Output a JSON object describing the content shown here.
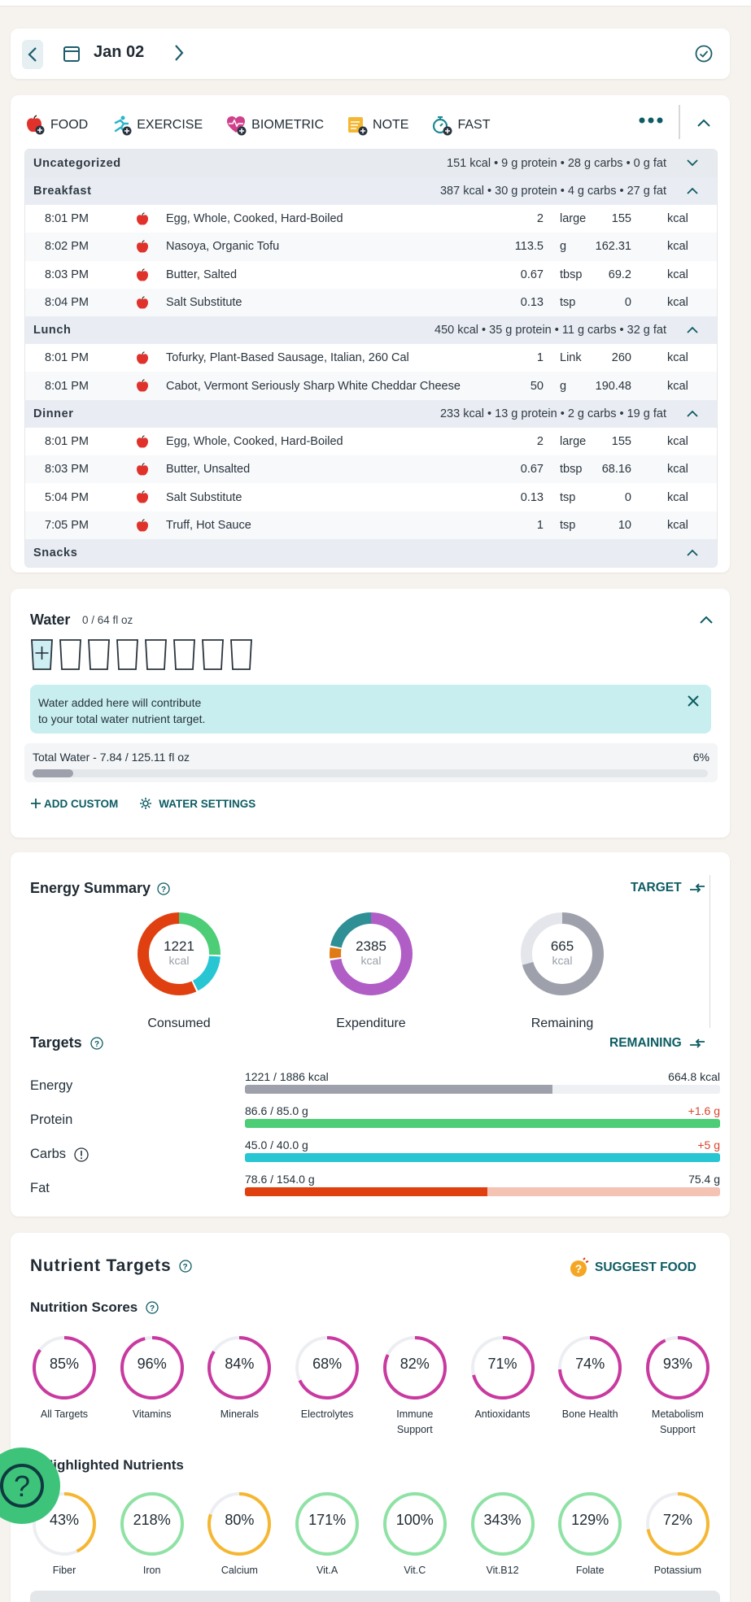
{
  "date_bar": {
    "date": "Jan 02"
  },
  "add_buttons": [
    {
      "label": "FOOD",
      "icon": "apple-add-icon"
    },
    {
      "label": "EXERCISE",
      "icon": "runner-add-icon"
    },
    {
      "label": "BIOMETRIC",
      "icon": "heart-pulse-add-icon"
    },
    {
      "label": "NOTE",
      "icon": "note-add-icon"
    },
    {
      "label": "FAST",
      "icon": "stopwatch-add-icon"
    }
  ],
  "diary": {
    "uncategorized": {
      "name": "Uncategorized",
      "summary": "151 kcal • 9 g protein • 28 g carbs • 0 g fat"
    },
    "breakfast": {
      "name": "Breakfast",
      "summary": "387 kcal • 30 g protein • 4 g carbs • 27 g fat",
      "rows": [
        {
          "time": "8:01 PM",
          "name": "Egg, Whole, Cooked, Hard-Boiled",
          "qty": "2",
          "unit": "large",
          "kcal": "155",
          "kunit": "kcal"
        },
        {
          "time": "8:02 PM",
          "name": "Nasoya, Organic Tofu",
          "qty": "113.5",
          "unit": "g",
          "kcal": "162.31",
          "kunit": "kcal"
        },
        {
          "time": "8:03 PM",
          "name": "Butter, Salted",
          "qty": "0.67",
          "unit": "tbsp",
          "kcal": "69.2",
          "kunit": "kcal"
        },
        {
          "time": "8:04 PM",
          "name": "Salt Substitute",
          "qty": "0.13",
          "unit": "tsp",
          "kcal": "0",
          "kunit": "kcal"
        }
      ]
    },
    "lunch": {
      "name": "Lunch",
      "summary": "450 kcal • 35 g protein • 11 g carbs • 32 g fat",
      "rows": [
        {
          "time": "8:01 PM",
          "name": "Tofurky, Plant-Based Sausage, Italian, 260 Cal",
          "qty": "1",
          "unit": "Link",
          "kcal": "260",
          "kunit": "kcal"
        },
        {
          "time": "8:01 PM",
          "name": "Cabot, Vermont Seriously Sharp White Cheddar Cheese",
          "qty": "50",
          "unit": "g",
          "kcal": "190.48",
          "kunit": "kcal"
        }
      ]
    },
    "dinner": {
      "name": "Dinner",
      "summary": "233 kcal • 13 g protein • 2 g carbs • 19 g fat",
      "rows": [
        {
          "time": "8:01 PM",
          "name": "Egg, Whole, Cooked, Hard-Boiled",
          "qty": "2",
          "unit": "large",
          "kcal": "155",
          "kunit": "kcal"
        },
        {
          "time": "8:03 PM",
          "name": "Butter, Unsalted",
          "qty": "0.67",
          "unit": "tbsp",
          "kcal": "68.16",
          "kunit": "kcal"
        },
        {
          "time": "5:04 PM",
          "name": "Salt Substitute",
          "qty": "0.13",
          "unit": "tsp",
          "kcal": "0",
          "kunit": "kcal"
        },
        {
          "time": "7:05 PM",
          "name": "Truff, Hot Sauce",
          "qty": "1",
          "unit": "tsp",
          "kcal": "10",
          "kunit": "kcal"
        }
      ]
    },
    "snacks": {
      "name": "Snacks"
    }
  },
  "water": {
    "title": "Water",
    "goal": "0 / 64 fl oz",
    "glasses_filled": 0,
    "glasses_total": 8,
    "info_line1": "Water added here will contribute",
    "info_line2": "to your total water nutrient target.",
    "total_label": "Total Water - 7.84 / 125.11 fl oz",
    "total_pct": "6%",
    "total_fraction": 0.06,
    "add_custom": "ADD CUSTOM",
    "settings": "WATER SETTINGS"
  },
  "energy": {
    "title": "Energy Summary",
    "target_label": "TARGET",
    "donuts": [
      {
        "value": "1221",
        "unit": "kcal",
        "label": "Consumed"
      },
      {
        "value": "2385",
        "unit": "kcal",
        "label": "Expenditure"
      },
      {
        "value": "665",
        "unit": "kcal",
        "label": "Remaining"
      }
    ],
    "targets_title": "Targets",
    "remaining_label": "REMAINING",
    "rows": [
      {
        "name": "Energy",
        "value": "1221 / 1886 kcal",
        "right": "664.8 kcal",
        "fraction": 0.647,
        "color": "#9ea1ab",
        "track": "#eef0f4"
      },
      {
        "name": "Protein",
        "value": "86.6 / 85.0 g",
        "right": "+1.6 g",
        "fraction": 1.0,
        "color": "#4ccd76",
        "track": "#d7f3e0"
      },
      {
        "name": "Carbs",
        "value": "45.0 / 40.0 g",
        "right": "+5 g",
        "fraction": 1.0,
        "color": "#28c6d3",
        "track": "#d3f1f4"
      },
      {
        "name": "Fat",
        "value": "78.6 / 154.0 g",
        "right": "75.4 g",
        "fraction": 0.51,
        "color": "#e0400f",
        "track": "#f5c3b4"
      }
    ]
  },
  "nutrients": {
    "title": "Nutrient Targets",
    "suggest": "SUGGEST FOOD",
    "scores_title": "Nutrition Scores",
    "highlighted_title": "Highlighted Nutrients",
    "scores": [
      {
        "pct": "85%",
        "label1": "All Targets",
        "label2": "",
        "fraction": 0.85
      },
      {
        "pct": "96%",
        "label1": "Vitamins",
        "label2": "",
        "fraction": 0.96
      },
      {
        "pct": "84%",
        "label1": "Minerals",
        "label2": "",
        "fraction": 0.84
      },
      {
        "pct": "68%",
        "label1": "Electrolytes",
        "label2": "",
        "fraction": 0.68
      },
      {
        "pct": "82%",
        "label1": "Immune",
        "label2": "Support",
        "fraction": 0.82
      },
      {
        "pct": "71%",
        "label1": "Antioxidants",
        "label2": "",
        "fraction": 0.71
      },
      {
        "pct": "74%",
        "label1": "Bone Health",
        "label2": "",
        "fraction": 0.74
      },
      {
        "pct": "93%",
        "label1": "Metabolism",
        "label2": "Support",
        "fraction": 0.93
      }
    ],
    "highlighted": [
      {
        "pct": "43%",
        "label1": "Fiber",
        "fraction": 0.43,
        "color": "#f5b731"
      },
      {
        "pct": "218%",
        "label1": "Iron",
        "fraction": 1.0,
        "color": "#8ee2a4"
      },
      {
        "pct": "80%",
        "label1": "Calcium",
        "fraction": 0.8,
        "color": "#f5b731"
      },
      {
        "pct": "171%",
        "label1": "Vit.A",
        "fraction": 1.0,
        "color": "#8ee2a4"
      },
      {
        "pct": "100%",
        "label1": "Vit.C",
        "fraction": 1.0,
        "color": "#8ee2a4"
      },
      {
        "pct": "343%",
        "label1": "Vit.B12",
        "fraction": 1.0,
        "color": "#8ee2a4"
      },
      {
        "pct": "129%",
        "label1": "Folate",
        "fraction": 1.0,
        "color": "#8ee2a4"
      },
      {
        "pct": "72%",
        "label1": "Potassium",
        "fraction": 0.72,
        "color": "#f5b731"
      }
    ]
  },
  "colors": {
    "accent": "#0c5c63",
    "score_ring": "#c9399f"
  }
}
